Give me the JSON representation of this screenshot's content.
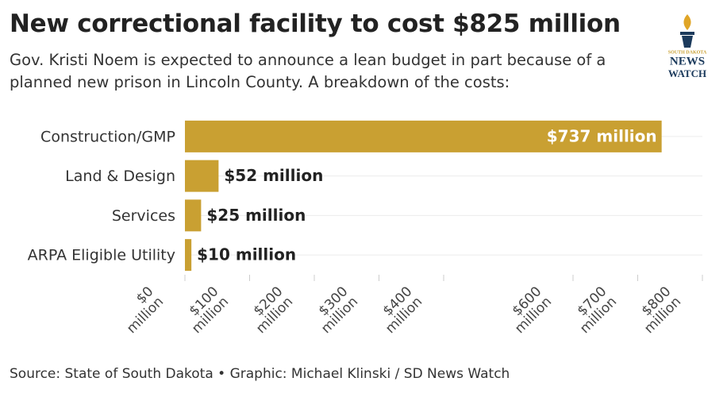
{
  "chart_data": {
    "type": "bar",
    "orientation": "horizontal",
    "title": "New correctional facility to cost $825 million",
    "subtitle": "Gov. Kristi Noem is expected to announce a lean budget in part because of a planned new prison in Lincoln County. A breakdown of the costs:",
    "categories": [
      "Construction/GMP",
      "Land & Design",
      "Services",
      "ARPA Eligible Utility"
    ],
    "values": [
      737,
      52,
      25,
      10
    ],
    "value_labels": [
      "$737 million",
      "$52 million",
      "$25 million",
      "$10 million"
    ],
    "color": "#c9a032",
    "xlim": [
      0,
      800
    ],
    "xticks": [
      {
        "value": 0,
        "label": "$0 million"
      },
      {
        "value": 100,
        "label": "$100 million"
      },
      {
        "value": 200,
        "label": "$200 million"
      },
      {
        "value": 300,
        "label": "$300 million"
      },
      {
        "value": 400,
        "label": "$400 million"
      },
      {
        "value": 600,
        "label": "$600 million"
      },
      {
        "value": 700,
        "label": "$700 million"
      },
      {
        "value": 800,
        "label": "$800 million"
      }
    ],
    "grid": true,
    "source": "Source: State of South Dakota • Graphic: Michael Klinski / SD News Watch",
    "logo": {
      "line1": "SOUTH DAKOTA",
      "line2": "NEWS",
      "line3": "WATCH"
    }
  }
}
